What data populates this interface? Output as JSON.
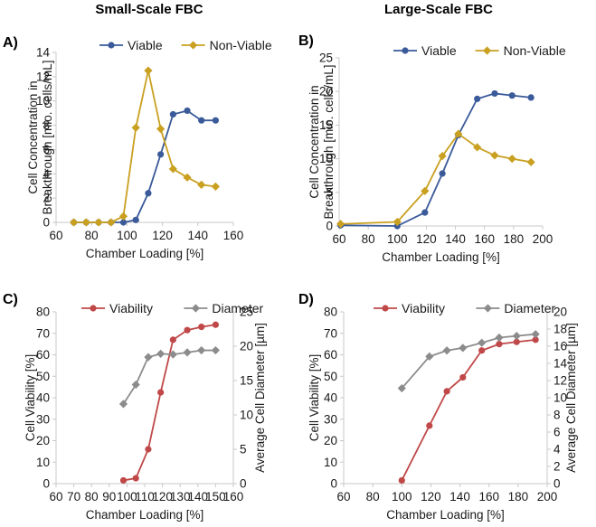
{
  "headers": {
    "left": "Small-Scale FBC",
    "right": "Large-Scale FBC"
  },
  "colors": {
    "viable": "#3A5A9A",
    "nonviable": "#C9A020",
    "viability": "#C04848",
    "diameter": "#8C8C8C"
  },
  "chart_data": [
    {
      "panel": "A)",
      "type": "line",
      "xlabel": "Chamber Loading [%]",
      "ylabel": "Cell Concentration in Breakthrough [mio. cells/mL]",
      "xlim": [
        60,
        160
      ],
      "xticks": [
        60,
        80,
        100,
        120,
        140,
        160
      ],
      "ylim": [
        0,
        14
      ],
      "yticks": [
        0,
        2,
        4,
        6,
        8,
        10,
        12,
        14
      ],
      "legend_position": "top",
      "series": [
        {
          "name": "Viable",
          "color": "viable",
          "marker": "circle",
          "x": [
            70,
            77,
            84,
            91,
            98,
            105,
            112,
            119,
            126,
            134,
            142,
            150
          ],
          "y": [
            0,
            0,
            0,
            0,
            0,
            0.2,
            2.4,
            5.6,
            8.9,
            9.2,
            8.4,
            8.4
          ]
        },
        {
          "name": "Non-Viable",
          "color": "nonviable",
          "marker": "diamond",
          "x": [
            70,
            77,
            84,
            91,
            98,
            105,
            112,
            119,
            126,
            134,
            142,
            150
          ],
          "y": [
            0,
            0,
            0,
            0,
            0.5,
            7.8,
            12.5,
            7.7,
            4.4,
            3.7,
            3.1,
            2.95
          ]
        }
      ]
    },
    {
      "panel": "B)",
      "type": "line",
      "xlabel": "Chamber Loading [%]",
      "ylabel": "Cell Concentration in Breakthrough [mio. cells/mL]",
      "xlim": [
        60,
        200
      ],
      "xticks": [
        60,
        80,
        100,
        120,
        140,
        160,
        180,
        200
      ],
      "ylim": [
        0,
        25
      ],
      "yticks": [
        0,
        5,
        10,
        15,
        20,
        25
      ],
      "legend_position": "top",
      "series": [
        {
          "name": "Viable",
          "color": "viable",
          "marker": "circle",
          "x": [
            61,
            100,
            119,
            131,
            142,
            155,
            167,
            179,
            192
          ],
          "y": [
            0.1,
            0,
            2,
            7.8,
            13.5,
            18.9,
            19.7,
            19.4,
            19.1
          ]
        },
        {
          "name": "Non-Viable",
          "color": "nonviable",
          "marker": "diamond",
          "x": [
            61,
            100,
            119,
            131,
            142,
            155,
            167,
            179,
            192
          ],
          "y": [
            0.3,
            0.6,
            5.2,
            10.4,
            13.7,
            11.7,
            10.5,
            10,
            9.5
          ]
        }
      ]
    },
    {
      "panel": "C)",
      "type": "line",
      "xlabel": "Chamber Loading [%]",
      "ylabel": "Cell Viability [%]",
      "y2label": "Average Cell Diameter [µm]",
      "xlim": [
        60,
        160
      ],
      "xticks": [
        60,
        70,
        80,
        90,
        100,
        110,
        120,
        130,
        140,
        150,
        160
      ],
      "ylim": [
        0,
        80
      ],
      "yticks": [
        0,
        10,
        20,
        30,
        40,
        50,
        60,
        70,
        80
      ],
      "y2lim": [
        0,
        25
      ],
      "y2ticks": [
        0,
        5,
        10,
        15,
        20,
        25
      ],
      "legend_position": "top",
      "series": [
        {
          "name": "Viability",
          "color": "viability",
          "marker": "circle",
          "axis": "left",
          "x": [
            98,
            105,
            112,
            119,
            126,
            134,
            142,
            150
          ],
          "y": [
            1.5,
            2.5,
            16,
            42.5,
            67,
            71.5,
            73,
            74
          ]
        },
        {
          "name": "Diameter",
          "color": "diameter",
          "marker": "diamond",
          "axis": "right",
          "x": [
            98,
            105,
            112,
            119,
            126,
            134,
            142,
            150
          ],
          "y": [
            11.6,
            14.4,
            18.4,
            18.9,
            18.8,
            19.1,
            19.4,
            19.4
          ]
        }
      ]
    },
    {
      "panel": "D)",
      "type": "line",
      "xlabel": "Chamber Loading [%]",
      "ylabel": "Cell Viability [%]",
      "y2label": "Average Cell Diameter [µm]",
      "xlim": [
        60,
        200
      ],
      "xticks": [
        60,
        80,
        100,
        120,
        140,
        160,
        180,
        200
      ],
      "ylim": [
        0,
        80
      ],
      "yticks": [
        0,
        10,
        20,
        30,
        40,
        50,
        60,
        70,
        80
      ],
      "y2lim": [
        0,
        20
      ],
      "y2ticks": [
        0,
        2,
        4,
        6,
        8,
        10,
        12,
        14,
        16,
        18,
        20
      ],
      "legend_position": "top",
      "series": [
        {
          "name": "Viability",
          "color": "viability",
          "marker": "circle",
          "axis": "left",
          "x": [
            100,
            119,
            131,
            142,
            155,
            167,
            179,
            192
          ],
          "y": [
            1.5,
            27,
            43,
            49.5,
            62,
            65,
            66,
            67
          ]
        },
        {
          "name": "Diameter",
          "color": "diameter",
          "marker": "diamond",
          "axis": "right",
          "x": [
            100,
            119,
            131,
            142,
            155,
            167,
            179,
            192
          ],
          "y": [
            11.1,
            14.8,
            15.5,
            15.8,
            16.4,
            17,
            17.2,
            17.4
          ]
        }
      ]
    }
  ]
}
